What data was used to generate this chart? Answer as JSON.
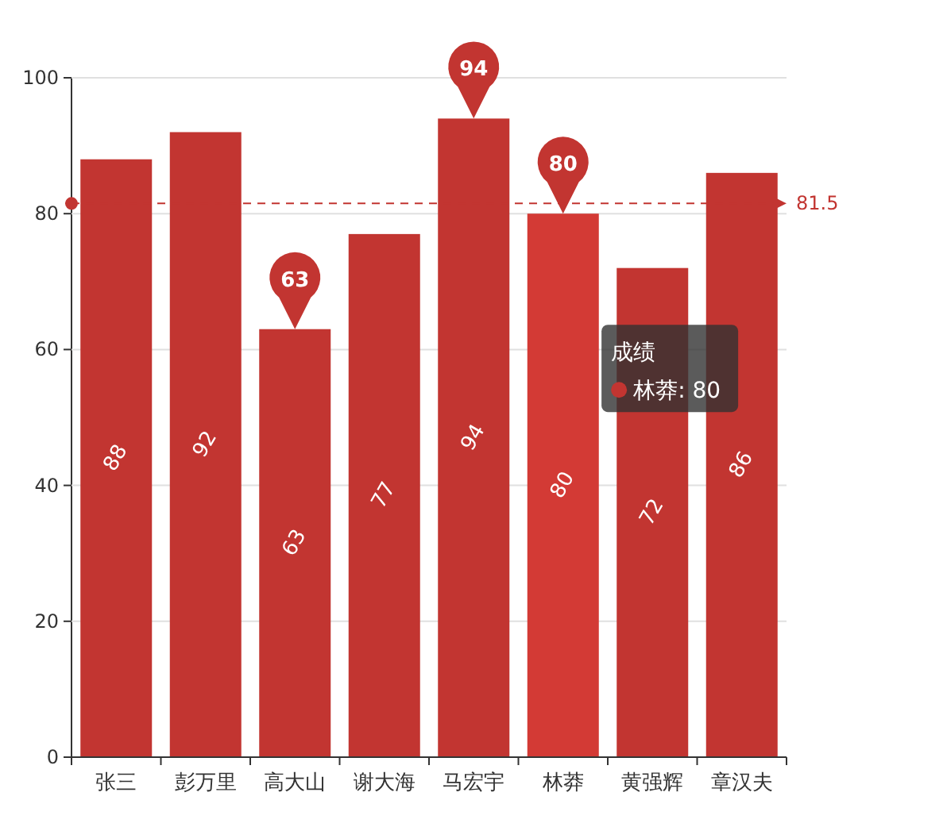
{
  "chart_data": {
    "type": "bar",
    "categories": [
      "张三",
      "彭万里",
      "高大山",
      "谢大海",
      "马宏宇",
      "林莽",
      "黄强辉",
      "章汉夫"
    ],
    "series": [
      {
        "name": "成绩",
        "color": "#c23531",
        "colors": [
          "#c23531",
          "#c23531",
          "#c23531",
          "#c23531",
          "#c23531",
          "#d33a35",
          "#c23531",
          "#c23531"
        ],
        "values": [
          88,
          92,
          63,
          77,
          94,
          80,
          72,
          86
        ]
      }
    ],
    "ylim": [
      0,
      100
    ],
    "yticks": [
      0,
      20,
      40,
      60,
      80,
      100
    ],
    "grid": "y",
    "data_labels": true,
    "ref_lines": [
      {
        "axis": "y",
        "value": 81.5,
        "label": "81.5",
        "color": "#c23531",
        "line_style": "dashed"
      }
    ],
    "annotations": [
      "94",
      "63",
      "80",
      "林莽: 80"
    ]
  }
}
